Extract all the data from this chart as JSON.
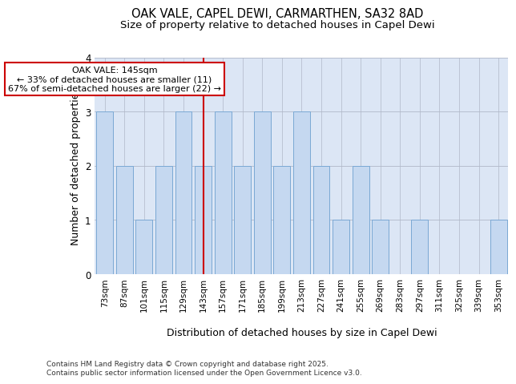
{
  "title_line1": "OAK VALE, CAPEL DEWI, CARMARTHEN, SA32 8AD",
  "title_line2": "Size of property relative to detached houses in Capel Dewi",
  "xlabel": "Distribution of detached houses by size in Capel Dewi",
  "ylabel": "Number of detached properties",
  "categories": [
    "73sqm",
    "87sqm",
    "101sqm",
    "115sqm",
    "129sqm",
    "143sqm",
    "157sqm",
    "171sqm",
    "185sqm",
    "199sqm",
    "213sqm",
    "227sqm",
    "241sqm",
    "255sqm",
    "269sqm",
    "283sqm",
    "297sqm",
    "311sqm",
    "325sqm",
    "339sqm",
    "353sqm"
  ],
  "values": [
    3,
    2,
    1,
    2,
    3,
    2,
    3,
    2,
    3,
    2,
    3,
    2,
    1,
    2,
    1,
    0,
    1,
    0,
    0,
    0,
    1
  ],
  "bar_color": "#c5d8f0",
  "bar_edge_color": "#7aa8d4",
  "highlight_index": 5,
  "highlight_line_color": "#cc0000",
  "annotation_line1": "OAK VALE: 145sqm",
  "annotation_line2": "← 33% of detached houses are smaller (11)",
  "annotation_line3": "67% of semi-detached houses are larger (22) →",
  "annotation_box_color": "#ffffff",
  "annotation_box_edge": "#cc0000",
  "ylim": [
    0,
    4
  ],
  "yticks": [
    0,
    1,
    2,
    3,
    4
  ],
  "background_color": "#dce6f5",
  "footer_text": "Contains HM Land Registry data © Crown copyright and database right 2025.\nContains public sector information licensed under the Open Government Licence v3.0.",
  "title_fontsize": 10.5,
  "subtitle_fontsize": 9.5,
  "axis_label_fontsize": 9,
  "tick_fontsize": 7.5,
  "annotation_fontsize": 8,
  "footer_fontsize": 6.5
}
